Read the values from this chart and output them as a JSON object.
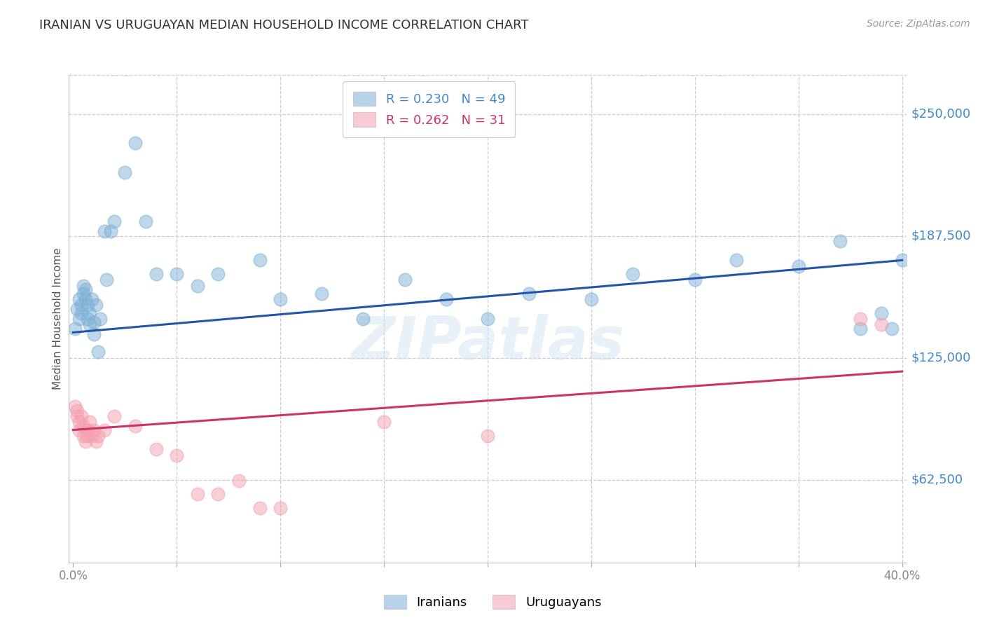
{
  "title": "IRANIAN VS URUGUAYAN MEDIAN HOUSEHOLD INCOME CORRELATION CHART",
  "source": "Source: ZipAtlas.com",
  "ylabel": "Median Household Income",
  "watermark": "ZIPatlas",
  "ytick_labels": [
    "$62,500",
    "$125,000",
    "$187,500",
    "$250,000"
  ],
  "ytick_values": [
    62500,
    125000,
    187500,
    250000
  ],
  "ymin": 20000,
  "ymax": 270000,
  "xmin": -0.002,
  "xmax": 0.402,
  "iranian_color": "#7EB0D5",
  "uruguayan_color": "#F4A0B0",
  "trendline_iranian_color": "#2255AA",
  "trendline_uruguayan_color": "#CC3366",
  "background_color": "#FFFFFF",
  "title_color": "#333333",
  "ytick_color": "#4488CC",
  "grid_color": "#CCCCCC",
  "iranian_scatter_x": [
    0.001,
    0.002,
    0.003,
    0.003,
    0.004,
    0.004,
    0.005,
    0.005,
    0.006,
    0.006,
    0.007,
    0.007,
    0.008,
    0.008,
    0.009,
    0.01,
    0.01,
    0.011,
    0.012,
    0.013,
    0.015,
    0.016,
    0.018,
    0.02,
    0.025,
    0.03,
    0.035,
    0.04,
    0.05,
    0.06,
    0.07,
    0.09,
    0.1,
    0.12,
    0.14,
    0.16,
    0.18,
    0.2,
    0.22,
    0.25,
    0.27,
    0.3,
    0.32,
    0.35,
    0.37,
    0.38,
    0.39,
    0.395,
    0.4
  ],
  "iranian_scatter_y": [
    140000,
    150000,
    155000,
    145000,
    148000,
    152000,
    158000,
    162000,
    160000,
    155000,
    145000,
    152000,
    148000,
    142000,
    155000,
    143000,
    137000,
    152000,
    128000,
    145000,
    190000,
    165000,
    190000,
    195000,
    220000,
    235000,
    195000,
    168000,
    168000,
    162000,
    168000,
    175000,
    155000,
    158000,
    145000,
    165000,
    155000,
    145000,
    158000,
    155000,
    168000,
    165000,
    175000,
    172000,
    185000,
    140000,
    148000,
    140000,
    175000
  ],
  "uruguayan_scatter_x": [
    0.001,
    0.002,
    0.002,
    0.003,
    0.003,
    0.004,
    0.005,
    0.005,
    0.006,
    0.006,
    0.007,
    0.007,
    0.008,
    0.009,
    0.01,
    0.011,
    0.012,
    0.015,
    0.02,
    0.03,
    0.04,
    0.05,
    0.06,
    0.07,
    0.08,
    0.09,
    0.1,
    0.15,
    0.2,
    0.38,
    0.39
  ],
  "uruguayan_scatter_y": [
    100000,
    95000,
    98000,
    92000,
    88000,
    95000,
    90000,
    85000,
    88000,
    82000,
    88000,
    85000,
    92000,
    85000,
    88000,
    82000,
    85000,
    88000,
    95000,
    90000,
    78000,
    75000,
    55000,
    55000,
    62000,
    48000,
    48000,
    92000,
    85000,
    145000,
    142000
  ],
  "iranian_trend_x": [
    0.0,
    0.4
  ],
  "iranian_trend_y": [
    138000,
    175000
  ],
  "uruguayan_trend_x": [
    0.0,
    0.4
  ],
  "uruguayan_trend_y": [
    88000,
    118000
  ],
  "legend_iranian_label": "R = 0.230   N = 49",
  "legend_uruguayan_label": "R = 0.262   N = 31",
  "legend_Iranian": "Iranians",
  "legend_Uruguayan": "Uruguayans"
}
